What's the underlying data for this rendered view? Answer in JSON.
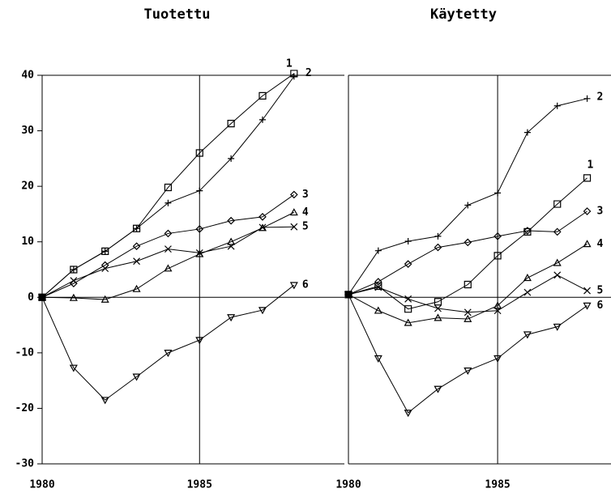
{
  "chart_data": [
    {
      "type": "line",
      "title": "Tuotettu",
      "color": "#000000",
      "x": [
        1980,
        1981,
        1982,
        1983,
        1984,
        1985,
        1986,
        1987,
        1988
      ],
      "xlim": [
        1980,
        1989.6
      ],
      "xticks": [
        1980,
        1985
      ],
      "grid": true,
      "ylim": [
        -30,
        40
      ],
      "yticks": [
        -30,
        -20,
        -10,
        0,
        10,
        20,
        30,
        40
      ],
      "series": [
        {
          "name": "1",
          "marker": "square",
          "values": [
            0,
            5,
            8.3,
            12.4,
            19.8,
            26,
            31.3,
            36.3,
            40.3
          ]
        },
        {
          "name": "2",
          "marker": "plus",
          "values": [
            0,
            5,
            8.3,
            12.4,
            17,
            19.2,
            25,
            32,
            39.8
          ]
        },
        {
          "name": "3",
          "marker": "diamond",
          "values": [
            0,
            2.5,
            5.8,
            9.2,
            11.5,
            12.3,
            13.8,
            14.5,
            18.5
          ]
        },
        {
          "name": "4",
          "marker": "triangle",
          "values": [
            0,
            -0.1,
            -0.4,
            1.5,
            5.2,
            7.8,
            10,
            12.5,
            15.3
          ]
        },
        {
          "name": "5",
          "marker": "x",
          "values": [
            0,
            3,
            5.2,
            6.5,
            8.7,
            8,
            9.2,
            12.6,
            12.7
          ]
        },
        {
          "name": "6",
          "marker": "triangle-down",
          "values": [
            0,
            -12.7,
            -18.5,
            -14.3,
            -10,
            -7.7,
            -3.6,
            -2.3,
            2.2
          ]
        }
      ]
    },
    {
      "type": "line",
      "title": "Käytetty",
      "color": "#000000",
      "x": [
        1980,
        1981,
        1982,
        1983,
        1984,
        1985,
        1986,
        1987,
        1988
      ],
      "xlim": [
        1980,
        1988.8
      ],
      "xticks": [
        1980,
        1985
      ],
      "grid": true,
      "ylim": [
        -30,
        40
      ],
      "series": [
        {
          "name": "1",
          "marker": "square",
          "values": [
            0.5,
            2,
            -2.1,
            -0.8,
            2.3,
            7.5,
            11.8,
            16.8,
            21.5
          ]
        },
        {
          "name": "2",
          "marker": "plus",
          "values": [
            0.5,
            8.4,
            10.1,
            11,
            16.6,
            18.8,
            29.7,
            34.5,
            35.8
          ]
        },
        {
          "name": "3",
          "marker": "diamond",
          "values": [
            0.5,
            2.8,
            6,
            9,
            9.9,
            11,
            12,
            11.8,
            15.5
          ]
        },
        {
          "name": "4",
          "marker": "triangle",
          "values": [
            0.5,
            -2.4,
            -4.6,
            -3.7,
            -3.9,
            -1.5,
            3.5,
            6.2,
            9.6
          ]
        },
        {
          "name": "5",
          "marker": "x",
          "values": [
            0.5,
            1.8,
            -0.3,
            -2,
            -2.7,
            -2.4,
            0.9,
            4,
            1.2
          ]
        },
        {
          "name": "6",
          "marker": "triangle-down",
          "values": [
            0.5,
            -11,
            -20.8,
            -16.5,
            -13.2,
            -11,
            -6.7,
            -5.3,
            -1.5
          ]
        }
      ]
    }
  ]
}
